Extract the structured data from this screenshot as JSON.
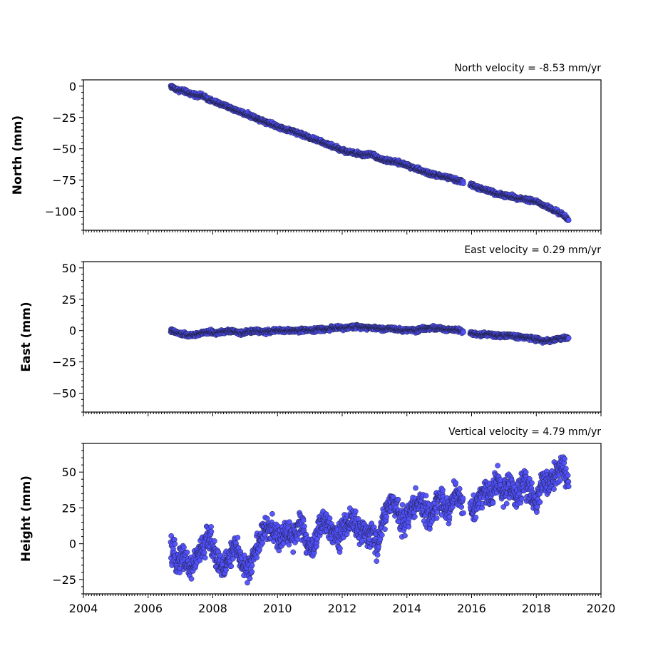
{
  "chart_data": [
    {
      "type": "scatter",
      "title": "North velocity = -8.53 mm/yr",
      "xlabel": "",
      "ylabel": "North (mm)",
      "xlim": [
        2004,
        2020
      ],
      "ylim": [
        -115,
        5
      ],
      "yticks": [
        0,
        -25,
        -50,
        -75,
        -100
      ],
      "xticks": [
        2004,
        2006,
        2008,
        2010,
        2012,
        2014,
        2016,
        2018,
        2020
      ],
      "show_xtick_labels": false,
      "color": "#5050ff",
      "series": [
        {
          "x": [
            2006.7,
            2006.9,
            2007.1,
            2007.3,
            2007.5,
            2007.7,
            2007.9,
            2008.1,
            2008.3,
            2008.5,
            2008.7,
            2008.9,
            2009.1,
            2009.3,
            2009.5,
            2009.7,
            2009.9,
            2010.1,
            2010.3,
            2010.5,
            2010.7,
            2010.9,
            2011.1,
            2011.3,
            2011.5,
            2011.7,
            2011.9,
            2012.1,
            2012.3,
            2012.5,
            2012.7,
            2012.9,
            2013.1,
            2013.3,
            2013.5,
            2013.7,
            2013.9,
            2014.1,
            2014.3,
            2014.5,
            2014.7,
            2014.9,
            2015.1,
            2015.3,
            2015.5,
            2015.7,
            2016.0,
            2016.2,
            2016.4,
            2016.6,
            2016.8,
            2017.0,
            2017.2,
            2017.4,
            2017.6,
            2017.8,
            2018.0,
            2018.2,
            2018.4,
            2018.6,
            2018.8,
            2019.0
          ],
          "y": [
            0,
            -3,
            -4,
            -6,
            -7,
            -8,
            -11,
            -13,
            -15,
            -17,
            -19,
            -21,
            -23,
            -25,
            -27,
            -29,
            -31,
            -33,
            -35,
            -36,
            -38,
            -40,
            -42,
            -44,
            -46,
            -48,
            -50,
            -52,
            -53,
            -54,
            -55,
            -54,
            -57,
            -59,
            -60,
            -61,
            -62,
            -64,
            -66,
            -68,
            -70,
            -71,
            -72,
            -73,
            -75,
            -76,
            -79,
            -81,
            -83,
            -84,
            -86,
            -87,
            -88,
            -89,
            -90,
            -91,
            -92,
            -95,
            -97,
            -100,
            -102,
            -107
          ]
        }
      ]
    },
    {
      "type": "scatter",
      "title": "East velocity = 0.29 mm/yr",
      "xlabel": "",
      "ylabel": "East (mm)",
      "xlim": [
        2004,
        2020
      ],
      "ylim": [
        -65,
        55
      ],
      "yticks": [
        50,
        25,
        0,
        -25,
        -50
      ],
      "xticks": [
        2004,
        2006,
        2008,
        2010,
        2012,
        2014,
        2016,
        2018,
        2020
      ],
      "show_xtick_labels": false,
      "color": "#5050ff",
      "series": [
        {
          "x": [
            2006.7,
            2006.9,
            2007.1,
            2007.3,
            2007.5,
            2007.7,
            2007.9,
            2008.1,
            2008.3,
            2008.5,
            2008.7,
            2008.9,
            2009.1,
            2009.3,
            2009.5,
            2009.7,
            2009.9,
            2010.1,
            2010.3,
            2010.5,
            2010.7,
            2010.9,
            2011.1,
            2011.3,
            2011.5,
            2011.7,
            2011.9,
            2012.1,
            2012.3,
            2012.5,
            2012.7,
            2012.9,
            2013.1,
            2013.3,
            2013.5,
            2013.7,
            2013.9,
            2014.1,
            2014.3,
            2014.5,
            2014.7,
            2014.9,
            2015.1,
            2015.3,
            2015.5,
            2015.7,
            2016.0,
            2016.2,
            2016.4,
            2016.6,
            2016.8,
            2017.0,
            2017.2,
            2017.4,
            2017.6,
            2017.8,
            2018.0,
            2018.2,
            2018.4,
            2018.6,
            2018.8,
            2019.0
          ],
          "y": [
            0,
            -2,
            -3,
            -4,
            -3,
            -2,
            -1,
            -2,
            -1,
            0,
            -1,
            -2,
            -1,
            0,
            -1,
            -1,
            0,
            0,
            0,
            0,
            0,
            1,
            0,
            1,
            1,
            2,
            2,
            2,
            3,
            3,
            3,
            2,
            2,
            1,
            2,
            1,
            0,
            1,
            0,
            2,
            2,
            2,
            1,
            1,
            1,
            0,
            -2,
            -3,
            -3,
            -3,
            -4,
            -4,
            -4,
            -5,
            -5,
            -6,
            -7,
            -8,
            -8,
            -7,
            -6,
            -6
          ]
        }
      ]
    },
    {
      "type": "scatter",
      "title": "Vertical velocity = 4.79 mm/yr",
      "xlabel": "",
      "ylabel": "Height (mm)",
      "xlim": [
        2004,
        2020
      ],
      "ylim": [
        -35,
        70
      ],
      "yticks": [
        50,
        25,
        0,
        -25
      ],
      "xticks": [
        2004,
        2006,
        2008,
        2010,
        2012,
        2014,
        2016,
        2018,
        2020
      ],
      "show_xtick_labels": true,
      "color": "#5050ff",
      "series": [
        {
          "x": [
            2006.7,
            2006.9,
            2007.1,
            2007.3,
            2007.5,
            2007.7,
            2007.9,
            2008.1,
            2008.3,
            2008.5,
            2008.7,
            2008.9,
            2009.1,
            2009.3,
            2009.5,
            2009.7,
            2009.9,
            2010.1,
            2010.3,
            2010.5,
            2010.7,
            2010.9,
            2011.1,
            2011.3,
            2011.5,
            2011.7,
            2011.9,
            2012.1,
            2012.3,
            2012.5,
            2012.7,
            2012.9,
            2013.1,
            2013.3,
            2013.5,
            2013.7,
            2013.9,
            2014.1,
            2014.3,
            2014.5,
            2014.7,
            2014.9,
            2015.1,
            2015.3,
            2015.5,
            2015.7,
            2016.0,
            2016.2,
            2016.4,
            2016.6,
            2016.8,
            2017.0,
            2017.2,
            2017.4,
            2017.6,
            2017.8,
            2018.0,
            2018.2,
            2018.4,
            2018.6,
            2018.8,
            2019.0
          ],
          "y": [
            -5,
            -12,
            -8,
            -18,
            -10,
            -2,
            5,
            -8,
            -18,
            -10,
            -3,
            -12,
            -20,
            -5,
            5,
            12,
            8,
            2,
            10,
            5,
            15,
            0,
            -3,
            12,
            15,
            10,
            5,
            12,
            18,
            10,
            5,
            8,
            -2,
            20,
            28,
            25,
            15,
            22,
            30,
            25,
            18,
            28,
            32,
            20,
            38,
            28,
            22,
            30,
            38,
            32,
            45,
            35,
            42,
            30,
            45,
            38,
            28,
            45,
            42,
            48,
            55,
            40
          ]
        }
      ]
    }
  ]
}
